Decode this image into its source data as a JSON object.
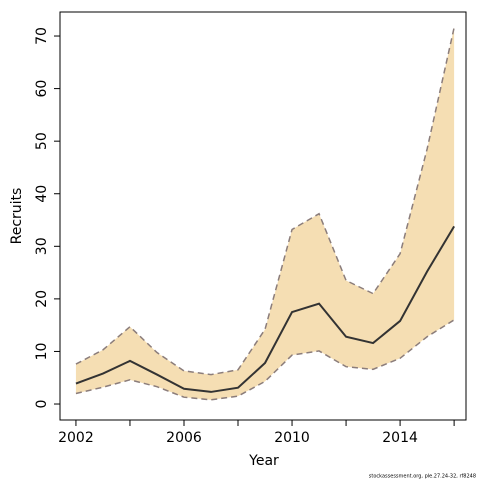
{
  "chart_data": {
    "type": "band_line",
    "x_label": "Year",
    "y_label": "Recruits",
    "source": "stockassessment.org, ple.27.24-32, rf8248",
    "x": [
      2002,
      2003,
      2004,
      2005,
      2006,
      2007,
      2008,
      2009,
      2010,
      2011,
      2012,
      2013,
      2014,
      2015,
      2016
    ],
    "values": [
      3.9,
      5.8,
      8.2,
      5.6,
      2.9,
      2.3,
      3.1,
      7.8,
      17.5,
      19.1,
      12.8,
      11.6,
      15.8,
      25.2,
      33.8
    ],
    "upper": [
      7.6,
      10.3,
      14.7,
      9.8,
      6.3,
      5.6,
      6.5,
      14.2,
      33.2,
      36.2,
      23.5,
      21.0,
      28.6,
      48.5,
      71.6
    ],
    "lower": [
      2.0,
      3.2,
      4.6,
      3.3,
      1.3,
      0.8,
      1.5,
      4.3,
      9.3,
      10.1,
      7.1,
      6.6,
      8.7,
      12.8,
      16.0
    ],
    "color": "#333333",
    "band_color": "#f5deb3",
    "bound_color": "#8b7d7b",
    "xlim": [
      2001.41,
      2016.44
    ],
    "ylim": [
      -3.04,
      74.57
    ],
    "xticks": [
      2002,
      2006,
      2010,
      2014
    ],
    "x_minor_ticks": [
      2004,
      2008,
      2012,
      2016
    ],
    "yticks": [
      0,
      10,
      20,
      30,
      40,
      50,
      60,
      70
    ]
  }
}
